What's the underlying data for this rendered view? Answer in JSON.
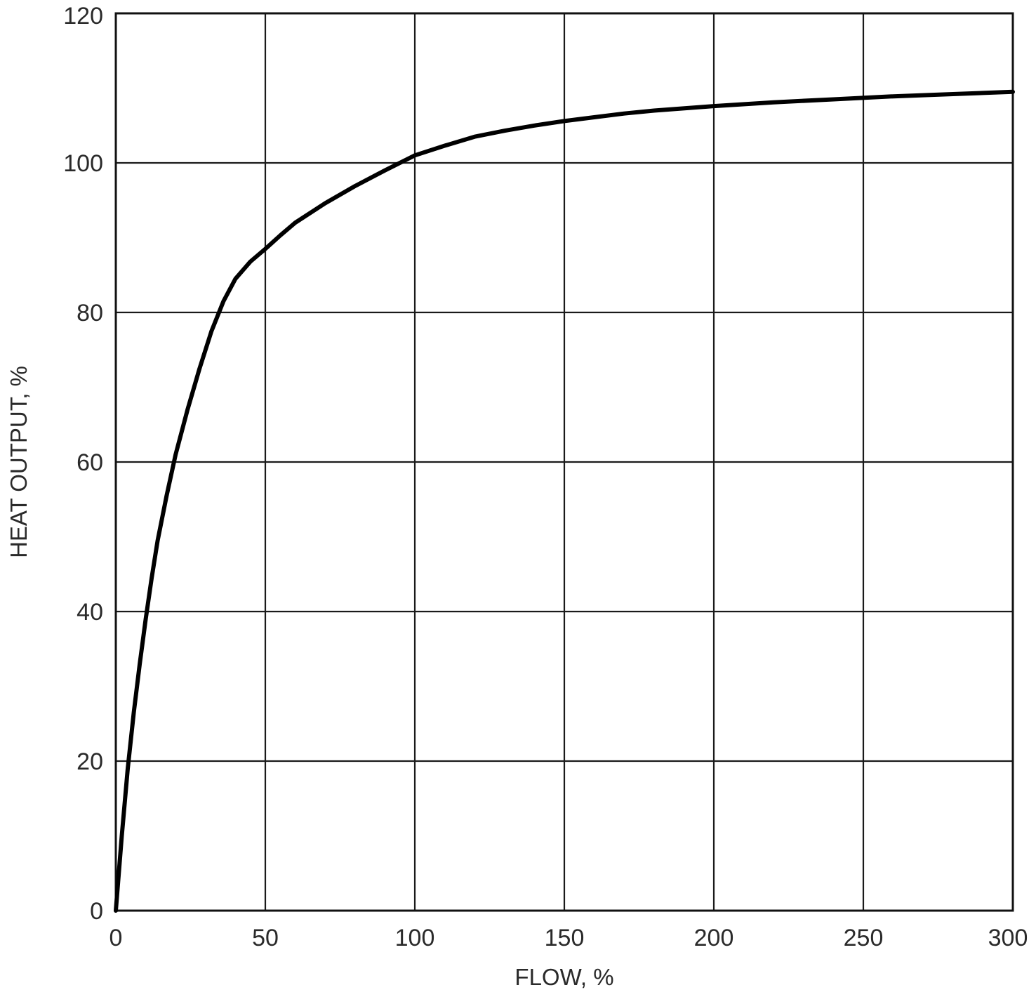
{
  "chart_data": {
    "type": "line",
    "title": "",
    "xlabel": "FLOW, %",
    "ylabel": "HEAT OUTPUT, %",
    "xlim": [
      0,
      300
    ],
    "ylim": [
      0,
      120
    ],
    "x_ticks": [
      0,
      50,
      100,
      150,
      200,
      250,
      300
    ],
    "y_ticks": [
      0,
      20,
      40,
      60,
      80,
      100,
      120
    ],
    "grid": true,
    "legend": "none",
    "line_color": "#000000",
    "series": [
      {
        "x": [
          0,
          2,
          4,
          6,
          8,
          10,
          12,
          14,
          17,
          20,
          24,
          28,
          32,
          36,
          40,
          45,
          50,
          55,
          60,
          70,
          80,
          90,
          100,
          110,
          120,
          130,
          140,
          150,
          160,
          170,
          180,
          200,
          220,
          240,
          260,
          280,
          300
        ],
        "values": [
          0,
          10,
          19,
          26.5,
          33,
          39,
          44.5,
          49.5,
          55.5,
          61,
          67,
          72.5,
          77.5,
          81.5,
          84.5,
          86.8,
          88.5,
          90.3,
          92,
          94.6,
          96.9,
          99,
          101,
          102.3,
          103.5,
          104.3,
          105,
          105.6,
          106.1,
          106.6,
          107,
          107.6,
          108.1,
          108.5,
          108.9,
          109.2,
          109.5
        ]
      }
    ]
  }
}
